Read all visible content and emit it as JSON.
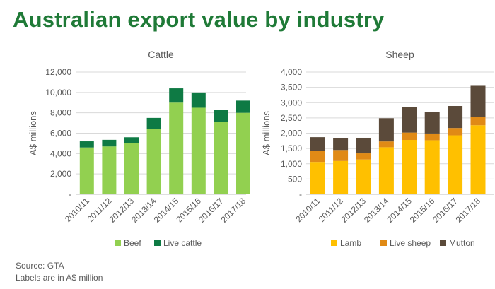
{
  "title": "Australian export value by industry",
  "source": "Source: GTA",
  "note": "Labels are in A$ million",
  "colors": {
    "title": "#1f7a37",
    "beef": "#92d050",
    "live_cattle": "#0e7a44",
    "lamb": "#ffc000",
    "live_sheep": "#e08a16",
    "mutton": "#5b4a3a",
    "gridline": "#d9d9d9"
  },
  "chart_data": [
    {
      "type": "bar",
      "stacked": true,
      "title": "Cattle",
      "ylabel": "A$ millions",
      "xlabel": "",
      "categories": [
        "2010/11",
        "2011/12",
        "2012/13",
        "2013/14",
        "2014/15",
        "2015/16",
        "2016/17",
        "2017/18"
      ],
      "ylim": [
        0,
        12000
      ],
      "yticks": [
        0,
        2000,
        4000,
        6000,
        8000,
        10000,
        12000
      ],
      "ytick_labels": [
        "-",
        "2,000",
        "4,000",
        "6,000",
        "8,000",
        "10,000",
        "12,000"
      ],
      "series": [
        {
          "name": "Beef",
          "color": "#92d050",
          "values": [
            4600,
            4700,
            5000,
            6400,
            9000,
            8500,
            7100,
            8000
          ]
        },
        {
          "name": "Live cattle",
          "color": "#0e7a44",
          "values": [
            600,
            650,
            600,
            1100,
            1400,
            1500,
            1200,
            1200
          ]
        }
      ],
      "grid": true,
      "legend": "bottom"
    },
    {
      "type": "bar",
      "stacked": true,
      "title": "Sheep",
      "ylabel": "A$ millions",
      "xlabel": "",
      "categories": [
        "2010/11",
        "2011/12",
        "2012/13",
        "2013/14",
        "2014/15",
        "2015/16",
        "2016/17",
        "2017/18"
      ],
      "ylim": [
        0,
        4000
      ],
      "yticks": [
        0,
        500,
        1000,
        1500,
        2000,
        2500,
        3000,
        3500,
        4000
      ],
      "ytick_labels": [
        "-",
        "500",
        "1,000",
        "1,500",
        "2,000",
        "2,500",
        "3,000",
        "3,500",
        "4,000"
      ],
      "series": [
        {
          "name": "Lamb",
          "color": "#ffc000",
          "values": [
            1060,
            1090,
            1140,
            1540,
            1780,
            1770,
            1930,
            2260
          ]
        },
        {
          "name": "Live sheep",
          "color": "#e08a16",
          "values": [
            360,
            360,
            200,
            190,
            240,
            220,
            240,
            260
          ]
        },
        {
          "name": "Mutton",
          "color": "#5b4a3a",
          "values": [
            450,
            390,
            510,
            760,
            830,
            700,
            720,
            1030
          ]
        }
      ],
      "grid": true,
      "legend": "bottom"
    }
  ]
}
